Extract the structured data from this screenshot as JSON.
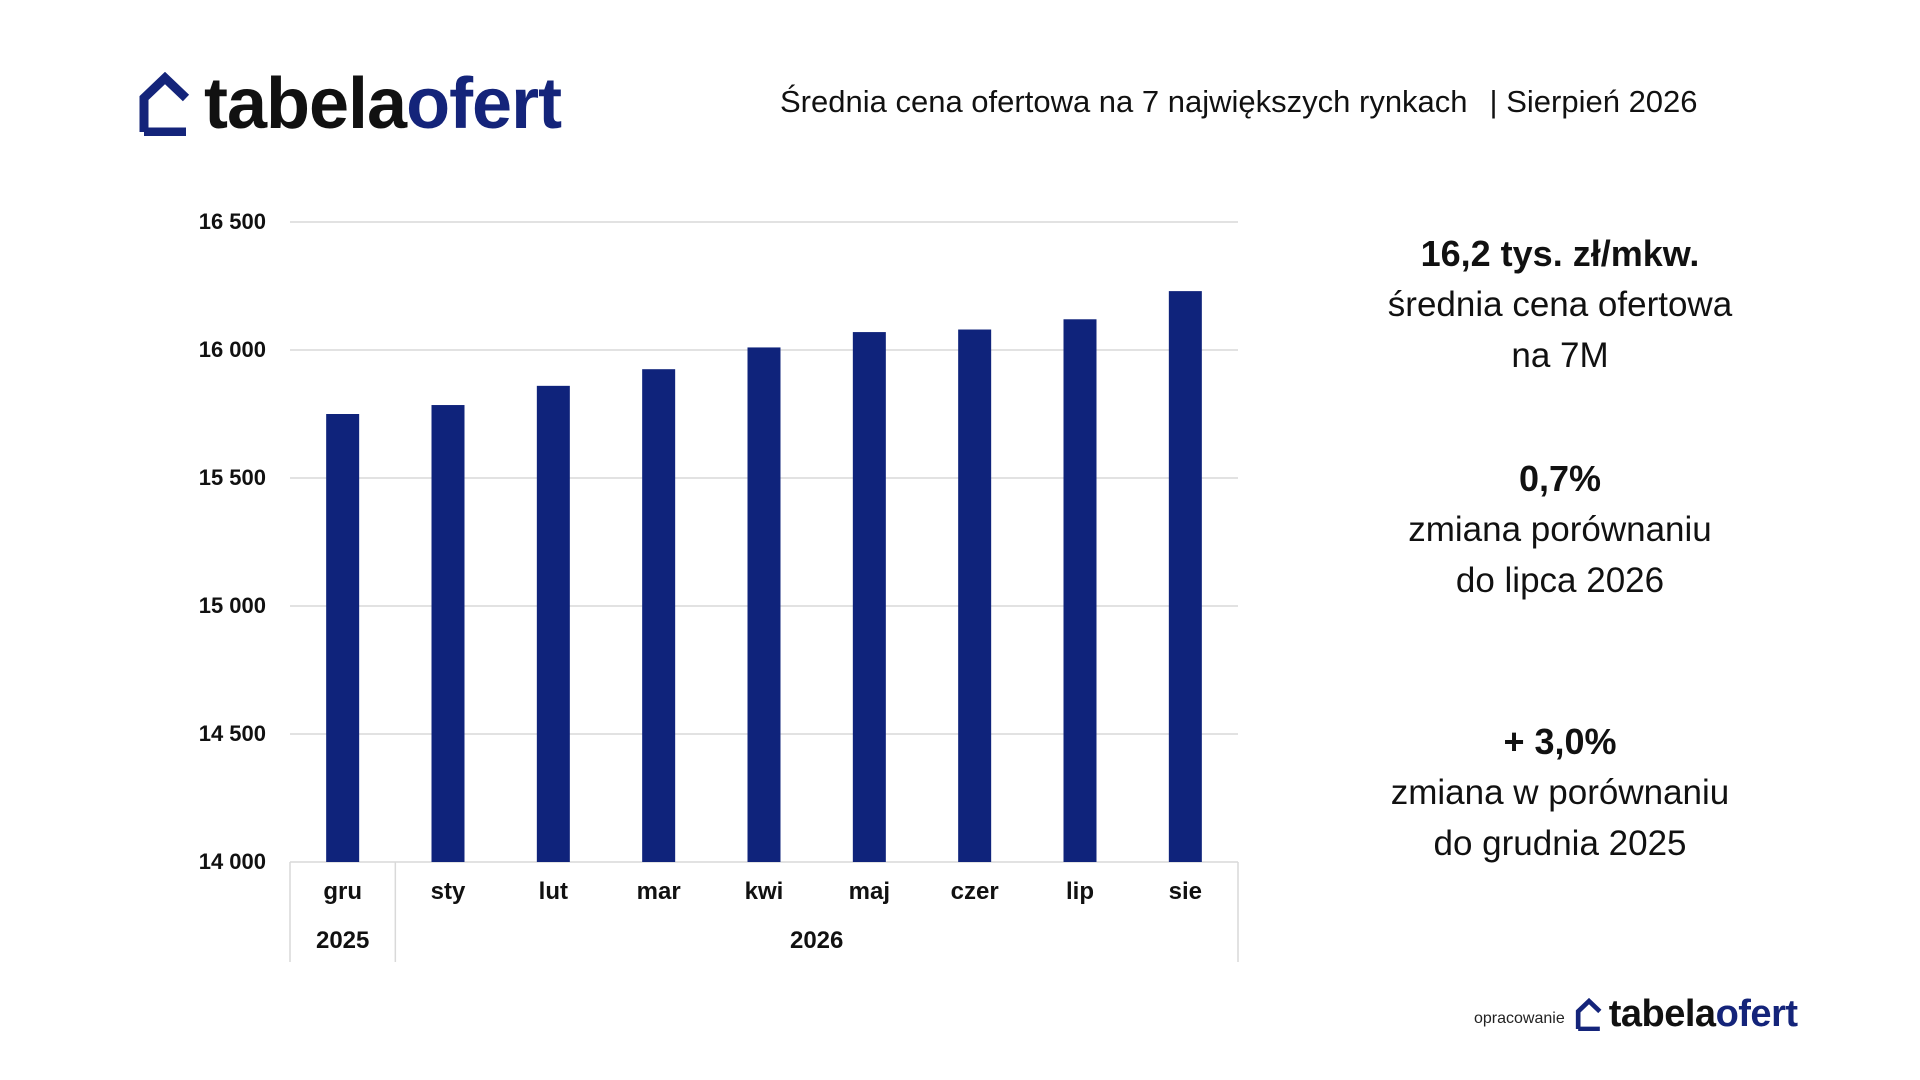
{
  "header": {
    "logo_part1": "tabela",
    "logo_part2": "ofert",
    "title": "Średnia cena ofertowa na 7 największych rynkach",
    "period": "| Sierpień  2026"
  },
  "colors": {
    "bar": "#0f237b",
    "brand": "#14247a",
    "grid": "#d9d9d9",
    "text": "#111111"
  },
  "chart_data": {
    "type": "bar",
    "categories": [
      "gru",
      "sty",
      "lut",
      "mar",
      "kwi",
      "maj",
      "czer",
      "lip",
      "sie"
    ],
    "category_groups": [
      {
        "label": "2025",
        "count": 1
      },
      {
        "label": "2026",
        "count": 8
      }
    ],
    "values": [
      15750,
      15785,
      15860,
      15925,
      16010,
      16070,
      16080,
      16120,
      16230
    ],
    "ylim": [
      14000,
      16500
    ],
    "yticks": [
      14000,
      14500,
      15000,
      15500,
      16000,
      16500
    ],
    "ytick_labels": [
      "14 000",
      "14 500",
      "15 000",
      "15 500",
      "16 000",
      "16 500"
    ],
    "title": "",
    "xlabel": "",
    "ylabel": "",
    "grid": true
  },
  "kpis": [
    {
      "value": "16,2 tys. zł/mkw.",
      "line1": "średnia cena ofertowa",
      "line2": "na 7M"
    },
    {
      "value": "0,7%",
      "line1": "zmiana porównaniu",
      "line2": "do lipca 2026"
    },
    {
      "value": "+ 3,0%",
      "line1": "zmiana w porównaniu",
      "line2": "do grudnia 2025"
    }
  ],
  "footer": {
    "credit": "opracowanie",
    "logo_part1": "tabela",
    "logo_part2": "ofert"
  }
}
